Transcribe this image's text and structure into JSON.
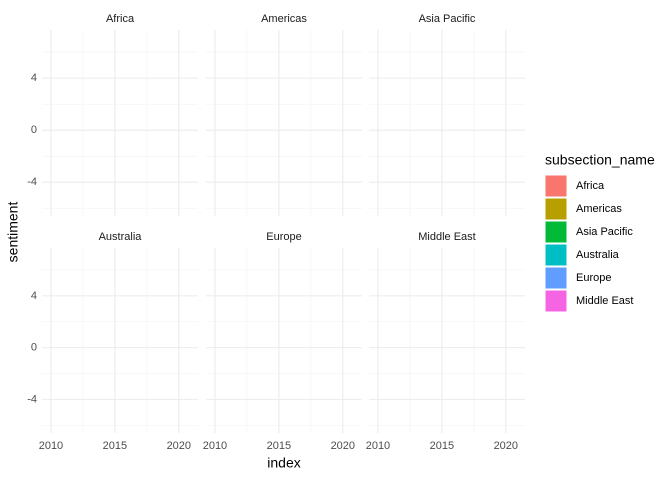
{
  "chart_data": {
    "type": "bar",
    "xlabel": "index",
    "ylabel": "sentiment",
    "facets": [
      "Africa",
      "Americas",
      "Asia Pacific",
      "Australia",
      "Europe",
      "Middle East"
    ],
    "xlim": [
      2009.3,
      2021.5
    ],
    "xticks": [
      2010,
      2015,
      2020
    ],
    "xticks_minor": [
      2012.5,
      2017.5
    ],
    "ylim": [
      -6.6,
      7.7
    ],
    "yticks": [
      -4,
      0,
      4
    ],
    "yticks_minor": [
      -6,
      -2,
      2,
      6
    ],
    "grid": true,
    "legend_title": "subsection_name",
    "legend": "right",
    "series": [
      {
        "name": "Africa",
        "color": "#F8766D"
      },
      {
        "name": "Americas",
        "color": "#B79F00"
      },
      {
        "name": "Asia Pacific",
        "color": "#00BA38"
      },
      {
        "name": "Australia",
        "color": "#00BFC4"
      },
      {
        "name": "Europe",
        "color": "#619CFF"
      },
      {
        "name": "Middle East",
        "color": "#F564E3"
      }
    ]
  }
}
